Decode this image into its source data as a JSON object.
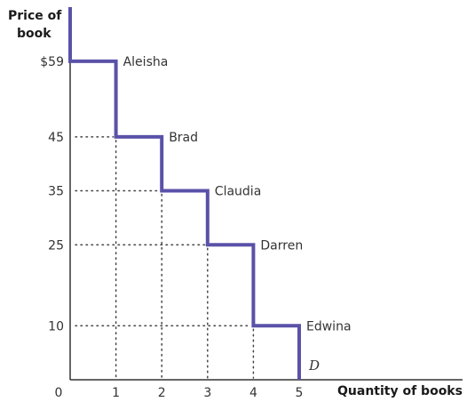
{
  "chart_data": {
    "type": "line",
    "ylabel_line1": "Price of",
    "ylabel_line2": "book",
    "xlabel": "Quantity of books",
    "curve_label": "D",
    "colors": {
      "curve": "#5a52a8",
      "axis": "#333333",
      "guide": "#444444"
    },
    "x_ticks": [
      {
        "value": 0,
        "label": "0"
      },
      {
        "value": 1,
        "label": "1"
      },
      {
        "value": 2,
        "label": "2"
      },
      {
        "value": 3,
        "label": "3"
      },
      {
        "value": 4,
        "label": "4"
      },
      {
        "value": 5,
        "label": "5"
      }
    ],
    "y_ticks": [
      {
        "value": 10,
        "label": "10"
      },
      {
        "value": 25,
        "label": "25"
      },
      {
        "value": 35,
        "label": "35"
      },
      {
        "value": 45,
        "label": "45"
      },
      {
        "value": 59,
        "label": "$59"
      }
    ],
    "steps": [
      {
        "buyer": "Aleisha",
        "quantity": 1,
        "price": 59
      },
      {
        "buyer": "Brad",
        "quantity": 2,
        "price": 45
      },
      {
        "buyer": "Claudia",
        "quantity": 3,
        "price": 35
      },
      {
        "buyer": "Darren",
        "quantity": 4,
        "price": 25
      },
      {
        "buyer": "Edwina",
        "quantity": 5,
        "price": 10
      }
    ]
  }
}
